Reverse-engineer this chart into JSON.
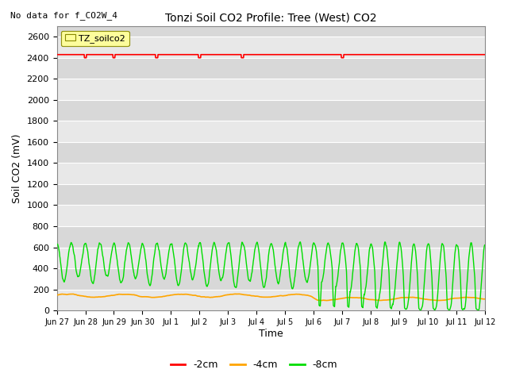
{
  "title": "Tonzi Soil CO2 Profile: Tree (West) CO2",
  "top_left_text": "No data for f_CO2W_4",
  "ylabel": "Soil CO2 (mV)",
  "xlabel": "Time",
  "legend_label": "TZ_soilco2",
  "legend_entries": [
    "-2cm",
    "-4cm",
    "-8cm"
  ],
  "legend_colors": [
    "#ff0000",
    "#ffa500",
    "#00dd00"
  ],
  "line_colors": [
    "#ff0000",
    "#ffa500",
    "#00dd00"
  ],
  "ylim": [
    0,
    2700
  ],
  "yticks": [
    0,
    200,
    400,
    600,
    800,
    1000,
    1200,
    1400,
    1600,
    1800,
    2000,
    2200,
    2400,
    2600
  ],
  "background_color": "#d8d8d8",
  "red_line_value": 2430,
  "orange_base": 140,
  "green_peak": 640,
  "green_trough_early": 330,
  "green_trough_late": 0
}
